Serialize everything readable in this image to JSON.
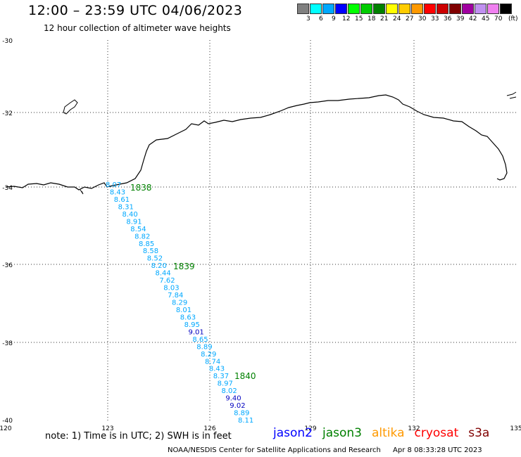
{
  "header": {
    "title": "12:00 – 23:59 UTC 04/06/2023",
    "subtitle": "12 hour collection of altimeter wave heights"
  },
  "legend": {
    "unit": "(ft)",
    "labels": [
      "3",
      "6",
      "9",
      "12",
      "15",
      "18",
      "21",
      "24",
      "27",
      "30",
      "33",
      "36",
      "39",
      "42",
      "45",
      "70"
    ],
    "colors": [
      "#808080",
      "#00ffff",
      "#00a8ff",
      "#0000ff",
      "#00ff00",
      "#00cc00",
      "#008000",
      "#ffff00",
      "#ffcc00",
      "#ff9900",
      "#ff0000",
      "#cc0000",
      "#800000",
      "#a000a0",
      "#c090f0",
      "#f080f0",
      "#000000"
    ]
  },
  "axes": {
    "lat_labels": [
      "-30",
      "-32",
      "-34",
      "-36",
      "-38",
      "-40"
    ],
    "lon_labels": [
      "120",
      "123",
      "126",
      "129",
      "132",
      "135"
    ]
  },
  "track": {
    "pass_labels": [
      "1838",
      "1839",
      "1840"
    ],
    "values": [
      {
        "v": "8.07",
        "c": "#00a8ff"
      },
      {
        "v": "8.43",
        "c": "#00a8ff"
      },
      {
        "v": "8.61",
        "c": "#00a8ff"
      },
      {
        "v": "8.31",
        "c": "#00a8ff"
      },
      {
        "v": "8.40",
        "c": "#00a8ff"
      },
      {
        "v": "8.91",
        "c": "#00a8ff"
      },
      {
        "v": "8.54",
        "c": "#00a8ff"
      },
      {
        "v": "8.82",
        "c": "#00a8ff"
      },
      {
        "v": "8.85",
        "c": "#00a8ff"
      },
      {
        "v": "8.58",
        "c": "#00a8ff"
      },
      {
        "v": "8.52",
        "c": "#00a8ff"
      },
      {
        "v": "8.20",
        "c": "#00a8ff"
      },
      {
        "v": "8.44",
        "c": "#00a8ff"
      },
      {
        "v": "7.62",
        "c": "#00a8ff"
      },
      {
        "v": "8.03",
        "c": "#00a8ff"
      },
      {
        "v": "7.84",
        "c": "#00a8ff"
      },
      {
        "v": "8.29",
        "c": "#00a8ff"
      },
      {
        "v": "8.01",
        "c": "#00a8ff"
      },
      {
        "v": "8.63",
        "c": "#00a8ff"
      },
      {
        "v": "8.95",
        "c": "#00a8ff"
      },
      {
        "v": "9.01",
        "c": "#0000c0"
      },
      {
        "v": "8.65",
        "c": "#00a8ff"
      },
      {
        "v": "8.89",
        "c": "#00a8ff"
      },
      {
        "v": "8.29",
        "c": "#00a8ff"
      },
      {
        "v": "8.74",
        "c": "#00a8ff"
      },
      {
        "v": "8.43",
        "c": "#00a8ff"
      },
      {
        "v": "8.37",
        "c": "#00a8ff"
      },
      {
        "v": "8.97",
        "c": "#00a8ff"
      },
      {
        "v": "8.02",
        "c": "#00a8ff"
      },
      {
        "v": "9.40",
        "c": "#0000c0"
      },
      {
        "v": "9.02",
        "c": "#0000c0"
      },
      {
        "v": "8.89",
        "c": "#00a8ff"
      },
      {
        "v": "8.11",
        "c": "#00a8ff"
      }
    ]
  },
  "footer": {
    "note": "note:  1) Time is in UTC;  2) SWH is in feet",
    "satellites": [
      {
        "name": "jason2",
        "color": "#0000ff"
      },
      {
        "name": "jason3",
        "color": "#008000"
      },
      {
        "name": "altika",
        "color": "#ff9900"
      },
      {
        "name": "cryosat",
        "color": "#ff0000"
      },
      {
        "name": "s3a",
        "color": "#800000"
      }
    ],
    "credit": "NOAA/NESDIS Center for Satellite Applications and Research",
    "timestamp": "Apr  8 08:33:28 UTC 2023"
  }
}
